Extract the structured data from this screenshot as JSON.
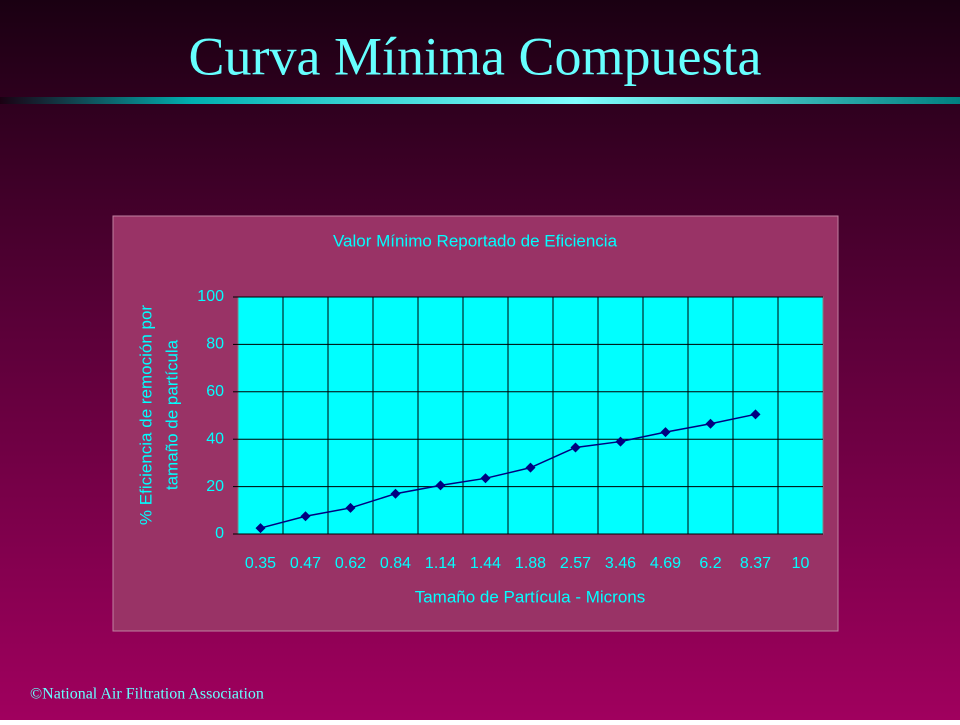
{
  "slide": {
    "title": "Curva Mínima Compuesta",
    "footer": "©National Air Filtration Association"
  },
  "chart_data": {
    "type": "line",
    "title": "Valor Mínimo Reportado de Eficiencia",
    "x_label": "Tamaño de Partícula - Microns",
    "y_label": [
      "% Eficiencia de remoción por",
      "tamaño de partícula"
    ],
    "categories": [
      "0.35",
      "0.47",
      "0.62",
      "0.84",
      "1.14",
      "1.44",
      "1.88",
      "2.57",
      "3.46",
      "4.69",
      "6.2",
      "8.37",
      "10"
    ],
    "series": [
      {
        "name": "Eficiencia",
        "color": "#000080",
        "values": [
          2.5,
          7.5,
          11,
          17,
          20.5,
          23.5,
          28,
          36.5,
          39,
          43,
          46.5,
          50.5,
          null
        ]
      }
    ],
    "ylim": [
      0,
      100
    ],
    "yticks": [
      0,
      20,
      40,
      60,
      80,
      100
    ],
    "grid": true
  }
}
